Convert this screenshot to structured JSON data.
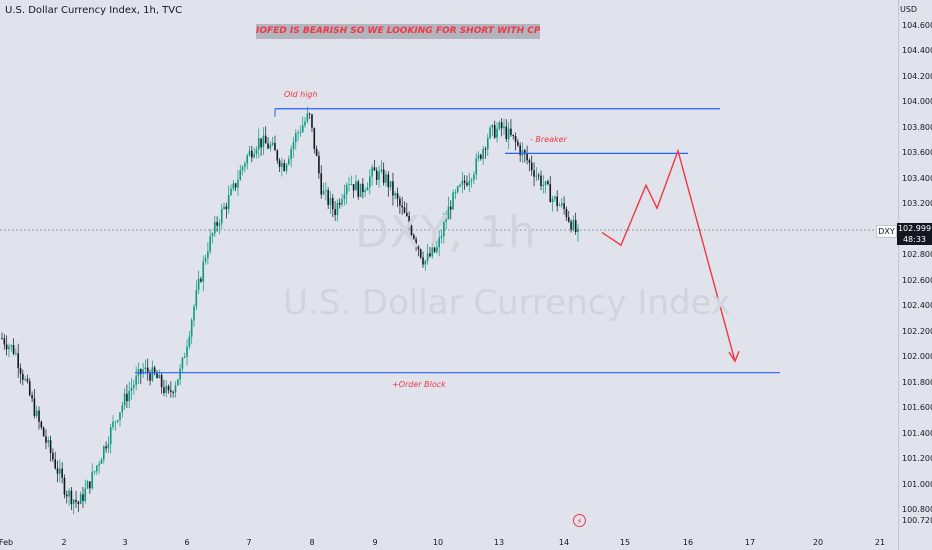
{
  "header": {
    "title": "U.S. Dollar Currency Index, 1h, TVC"
  },
  "banner": {
    "text": "IOFED IS BEARISH SO WE LOOKING FOR SHORT WITH CPI NUMBER"
  },
  "annotations": {
    "old_high": "Old high",
    "breaker": "- Breaker",
    "order_block": "+Order Block"
  },
  "watermark": {
    "symbol": "DXY, 1h",
    "name": "U.S. Dollar Currency Index"
  },
  "price_scale": {
    "unit": "USD",
    "symbol_tag": "DXY",
    "last_price": "102.999",
    "countdown": "48:33"
  },
  "colors": {
    "up": "#089981",
    "down": "#131722",
    "levels": "#2962ff",
    "projection": "#f23645",
    "background": "#e0e3eb"
  },
  "lightning_icon": "lightning-icon",
  "chart_data": {
    "type": "candlestick",
    "title": "U.S. Dollar Currency Index, 1h, TVC",
    "ylabel": "USD",
    "ylim": [
      100.72,
      104.72
    ],
    "yticks": [
      "104.600",
      "104.400",
      "104.200",
      "104.000",
      "103.800",
      "103.600",
      "103.400",
      "103.200",
      "103.000",
      "102.800",
      "102.600",
      "102.400",
      "102.200",
      "102.000",
      "101.800",
      "101.600",
      "101.400",
      "101.200",
      "101.000",
      "100.800",
      "100.720"
    ],
    "xticks": [
      "Feb",
      "2",
      "3",
      "6",
      "7",
      "8",
      "9",
      "10",
      "13",
      "14",
      "15",
      "16",
      "17",
      "20",
      "21"
    ],
    "last_price": 102.999,
    "levels": [
      {
        "label": "Old high",
        "value": 103.95
      },
      {
        "label": "- Breaker",
        "value": 103.6
      },
      {
        "label": "+Order Block",
        "value": 101.88
      }
    ],
    "projection_path": [
      102.98,
      102.88,
      103.35,
      103.17,
      103.62,
      101.97
    ],
    "series_path": [
      102.15,
      102.05,
      101.75,
      101.45,
      101.2,
      100.95,
      100.85,
      101.05,
      101.3,
      101.55,
      101.75,
      101.9,
      101.85,
      101.7,
      101.9,
      102.4,
      102.85,
      103.1,
      103.3,
      103.55,
      103.7,
      103.65,
      103.5,
      103.75,
      103.9,
      103.3,
      103.15,
      103.4,
      103.3,
      103.45,
      103.4,
      103.2,
      103.0,
      102.75,
      102.85,
      103.2,
      103.35,
      103.5,
      103.75,
      103.8,
      103.7,
      103.55,
      103.4,
      103.25,
      103.15,
      102.95
    ]
  }
}
